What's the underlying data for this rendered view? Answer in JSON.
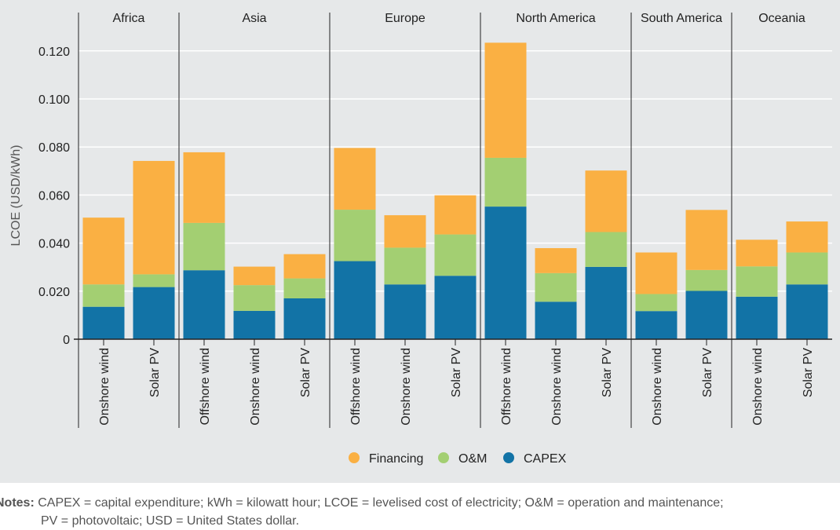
{
  "chart_data": {
    "type": "bar",
    "stacked": true,
    "title": "",
    "ylabel": "LCOE (USD/kWh)",
    "xlabel": "",
    "ylim": [
      0,
      0.13
    ],
    "yticks": [
      "0",
      "0.020",
      "0.040",
      "0.060",
      "0.080",
      "0.100",
      "0.120"
    ],
    "ytick_values": [
      0,
      0.02,
      0.04,
      0.06,
      0.08,
      0.1,
      0.12
    ],
    "grid": true,
    "legend_position": "bottom-center",
    "groups": [
      {
        "name": "Africa",
        "categories": [
          "Onshore wind",
          "Solar PV"
        ]
      },
      {
        "name": "Asia",
        "categories": [
          "Offshore wind",
          "Onshore wind",
          "Solar PV"
        ]
      },
      {
        "name": "Europe",
        "categories": [
          "Offshore wind",
          "Onshore wind",
          "Solar PV"
        ]
      },
      {
        "name": "North America",
        "categories": [
          "Offshore wind",
          "Onshore wind",
          "Solar PV"
        ]
      },
      {
        "name": "South America",
        "categories": [
          "Onshore wind",
          "Solar PV"
        ]
      },
      {
        "name": "Oceania",
        "categories": [
          "Onshore wind",
          "Solar PV"
        ]
      }
    ],
    "series": [
      {
        "name": "CAPEX",
        "color": "#1273a6",
        "values": [
          0.0135,
          0.0217,
          0.0287,
          0.0118,
          0.017,
          0.0325,
          0.0228,
          0.0264,
          0.0552,
          0.0156,
          0.0301,
          0.0117,
          0.0201,
          0.0177,
          0.0228
        ]
      },
      {
        "name": "O&M",
        "color": "#a3cf72",
        "values": [
          0.0093,
          0.0053,
          0.0197,
          0.0107,
          0.0083,
          0.0214,
          0.0153,
          0.0172,
          0.0203,
          0.0119,
          0.0145,
          0.0071,
          0.0087,
          0.0126,
          0.0133
        ]
      },
      {
        "name": "Financing",
        "color": "#fab043",
        "values": [
          0.0278,
          0.0472,
          0.0294,
          0.0077,
          0.0101,
          0.0257,
          0.0135,
          0.0163,
          0.0479,
          0.0104,
          0.0256,
          0.0173,
          0.025,
          0.0111,
          0.0129
        ]
      }
    ],
    "legend": [
      "Financing",
      "O&M",
      "CAPEX"
    ]
  },
  "notes": {
    "label": "Notes:",
    "line1": "CAPEX = capital expenditure; kWh = kilowatt hour; LCOE = levelised cost of electricity; O&M = operation and maintenance;",
    "line2": "PV = photovoltaic; USD = United States dollar."
  }
}
